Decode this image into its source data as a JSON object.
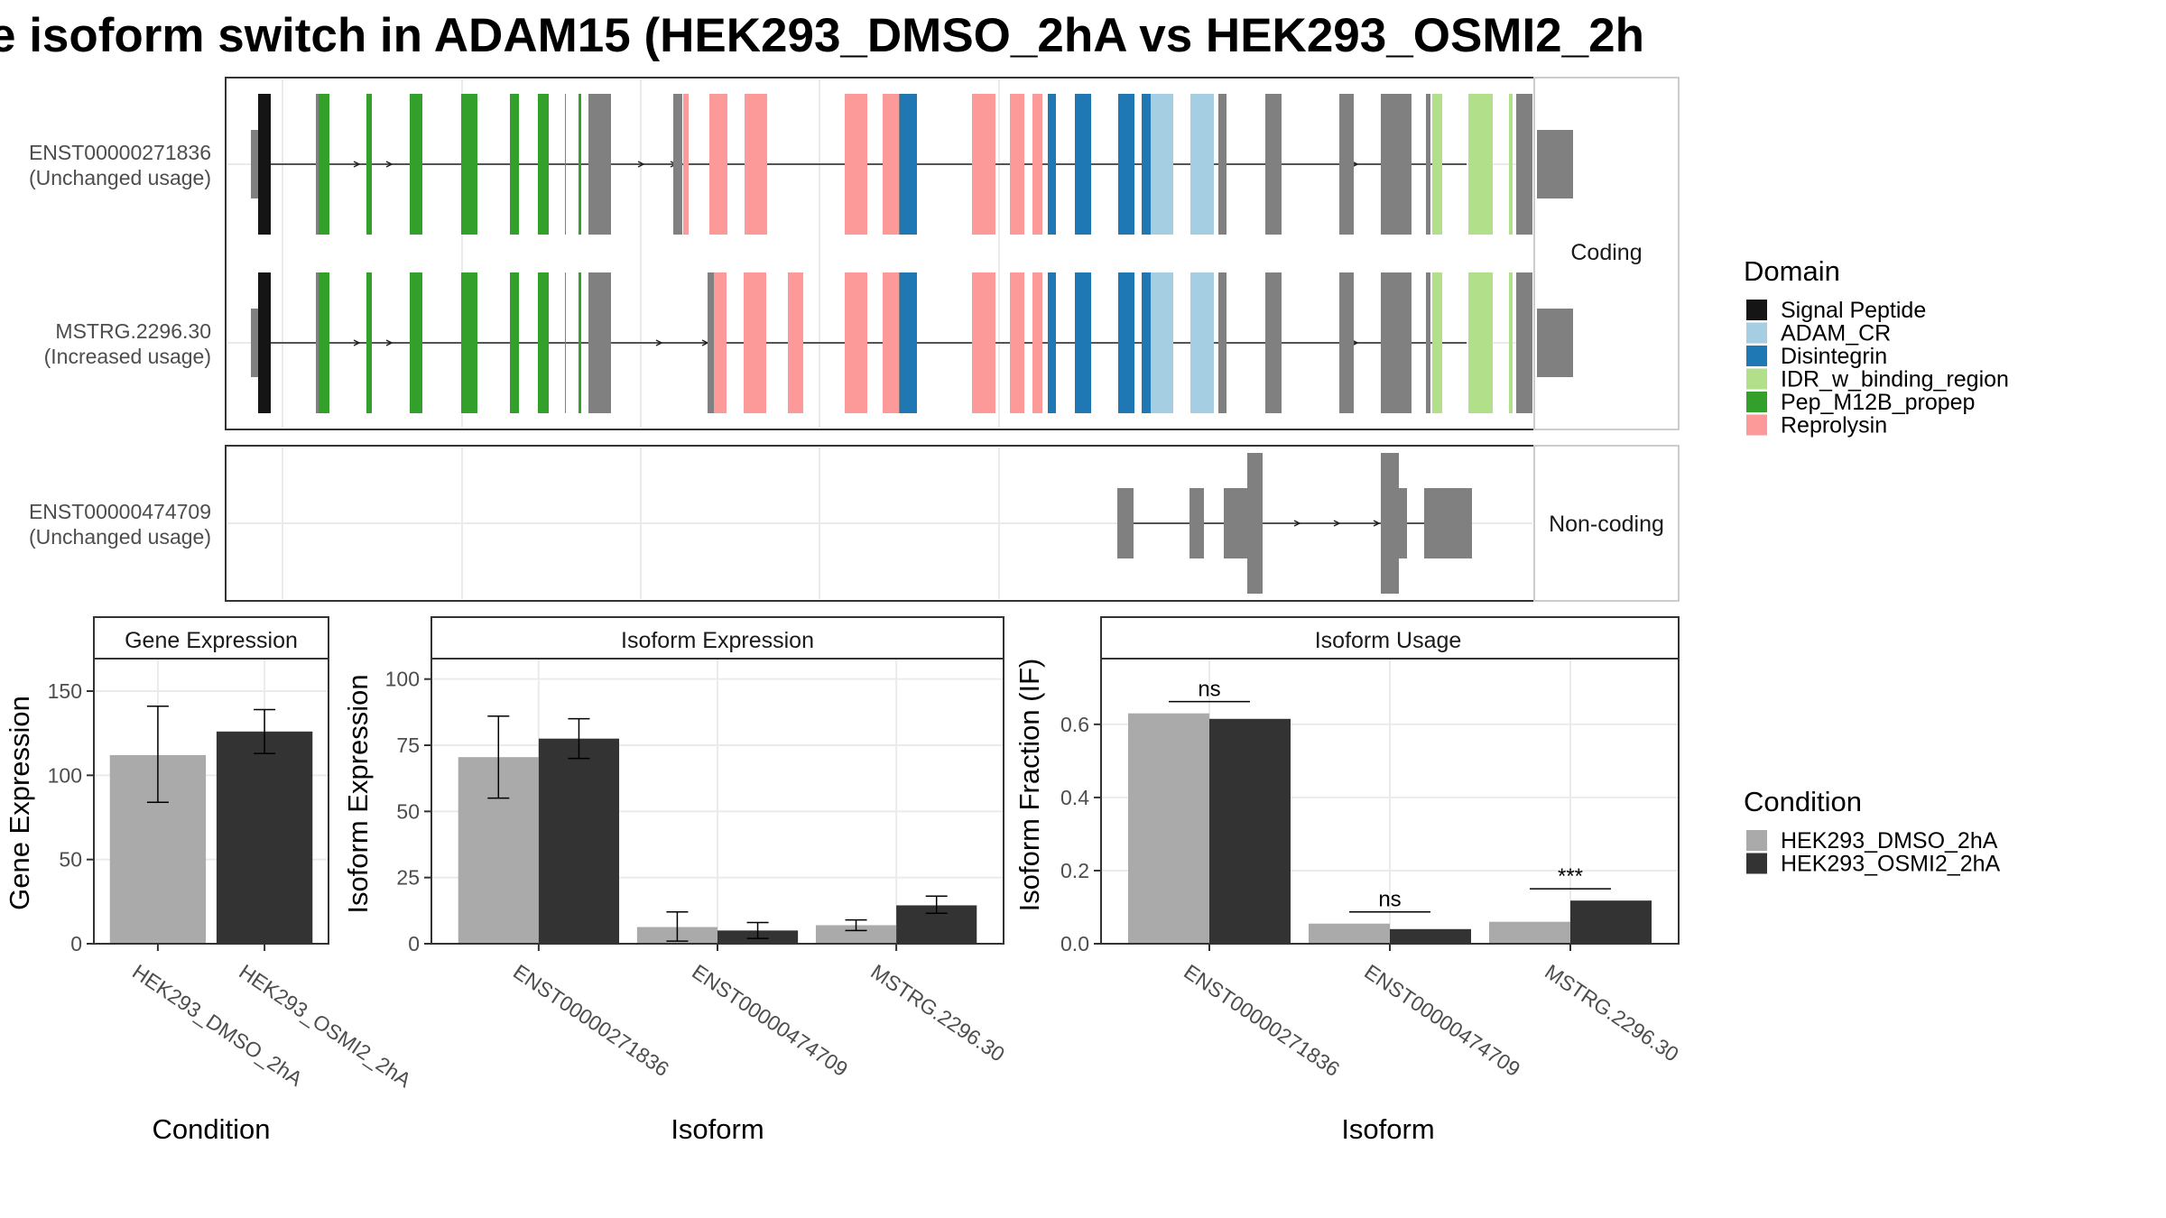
{
  "title": "e isoform switch in ADAM15 (HEK293_DMSO_2hA vs HEK293_OSMI2_2h",
  "domain_legend": {
    "title": "Domain",
    "items": [
      {
        "label": "Signal Peptide",
        "color": "#151515"
      },
      {
        "label": "ADAM_CR",
        "color": "#a6cee3"
      },
      {
        "label": "Disintegrin",
        "color": "#1f78b4"
      },
      {
        "label": "IDR_w_binding_region",
        "color": "#b2df8a"
      },
      {
        "label": "Pep_M12B_propep",
        "color": "#33a02c"
      },
      {
        "label": "Reprolysin",
        "color": "#fb9a99"
      }
    ]
  },
  "condition_legend": {
    "title": "Condition",
    "items": [
      {
        "label": "HEK293_DMSO_2hA",
        "color": "#aaaaaa"
      },
      {
        "label": "HEK293_OSMI2_2hA",
        "color": "#333333"
      }
    ]
  },
  "structure": {
    "coding_strip": "Coding",
    "noncoding_strip": "Non-coding",
    "tracks": [
      {
        "name": "ENST00000271836",
        "usage": "(Unchanged usage)"
      },
      {
        "name": "MSTRG.2296.30",
        "usage": "(Increased usage)"
      },
      {
        "name": "ENST00000474709",
        "usage": "(Unchanged usage)"
      }
    ]
  },
  "chart_data": [
    {
      "type": "bar",
      "panel": "Gene Expression",
      "categories": [
        "HEK293_DMSO_2hA",
        "HEK293_OSMI2_2hA"
      ],
      "values": [
        112,
        126
      ],
      "error_low": [
        84,
        113
      ],
      "error_high": [
        141,
        139
      ],
      "xlabel": "Condition",
      "ylabel": "Gene Expression",
      "ylim": [
        0,
        165
      ],
      "yticks": [
        0,
        50,
        100,
        150
      ]
    },
    {
      "type": "bar",
      "panel": "Isoform Expression",
      "categories": [
        "ENST00000271836",
        "ENST00000474709",
        "MSTRG.2296.30"
      ],
      "series": [
        {
          "name": "HEK293_DMSO_2hA",
          "values": [
            70.5,
            6.3,
            7.0
          ],
          "error_low": [
            55,
            1,
            5
          ],
          "error_high": [
            86,
            12,
            9
          ]
        },
        {
          "name": "HEK293_OSMI2_2hA",
          "values": [
            77.5,
            5.0,
            14.5
          ],
          "error_low": [
            70,
            2,
            11.5
          ],
          "error_high": [
            85,
            8,
            18
          ]
        }
      ],
      "xlabel": "Isoform",
      "ylabel": "Isoform Expression",
      "ylim": [
        0,
        105
      ],
      "yticks": [
        0,
        25,
        50,
        75,
        100
      ]
    },
    {
      "type": "bar",
      "panel": "Isoform Usage",
      "categories": [
        "ENST00000271836",
        "ENST00000474709",
        "MSTRG.2296.30"
      ],
      "series": [
        {
          "name": "HEK293_DMSO_2hA",
          "values": [
            0.63,
            0.055,
            0.06
          ]
        },
        {
          "name": "HEK293_OSMI2_2hA",
          "values": [
            0.615,
            0.04,
            0.118
          ]
        }
      ],
      "significance": [
        "ns",
        "ns",
        "***"
      ],
      "xlabel": "Isoform",
      "ylabel": "Isoform Fraction (IF)",
      "ylim": [
        0,
        0.76
      ],
      "yticks": [
        "0.0",
        "0.2",
        "0.4",
        "0.6"
      ]
    }
  ]
}
